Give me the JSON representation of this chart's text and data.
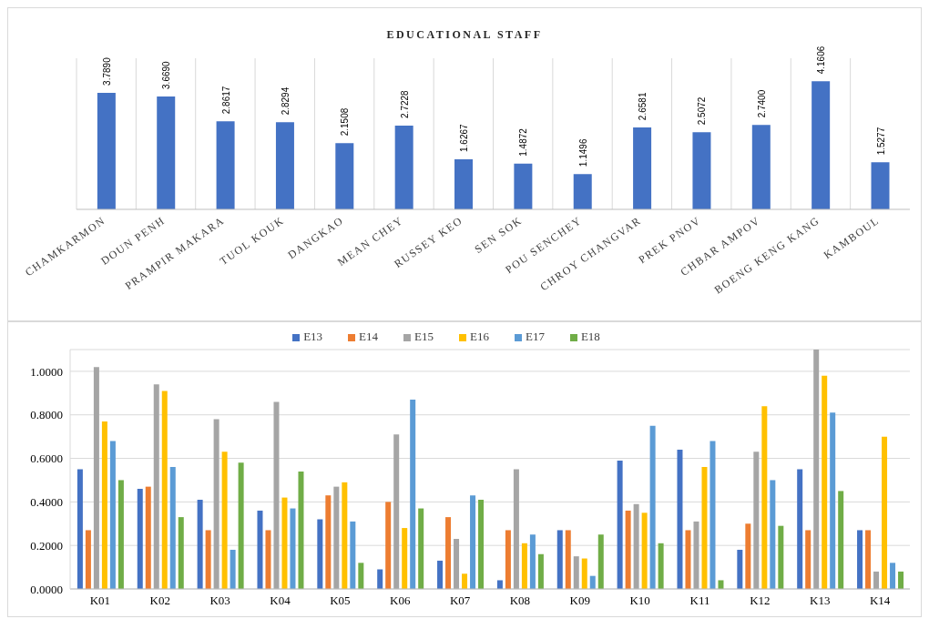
{
  "chart_data": [
    {
      "type": "bar",
      "title": "EDUCATIONAL STAFF",
      "categories": [
        "CHAMKARMON",
        "DOUN PENH",
        "PRAMPIR MAKARA",
        "TUOL KOUK",
        "DANGKAO",
        "MEAN CHEY",
        "RUSSEY KEO",
        "SEN SOK",
        "POU SENCHEY",
        "CHROY CHANGVAR",
        "PREK PNOV",
        "CHBAR AMPOV",
        "BOENG KENG KANG",
        "KAMBOUL"
      ],
      "values": [
        3.789,
        3.669,
        2.8617,
        2.8294,
        2.1508,
        2.7228,
        1.6267,
        1.4872,
        1.1496,
        2.6581,
        2.5072,
        2.74,
        4.1606,
        1.5277
      ],
      "value_labels": [
        "3.7890",
        "3.6690",
        "2.8617",
        "2.8294",
        "2.1508",
        "2.7228",
        "1.6267",
        "1.4872",
        "1.1496",
        "2.6581",
        "2.5072",
        "2.7400",
        "4.1606",
        "1.5277"
      ],
      "color": "#4472c4",
      "grid": "x"
    },
    {
      "type": "bar",
      "categories": [
        "K01",
        "K02",
        "K03",
        "K04",
        "K05",
        "K06",
        "K07",
        "K08",
        "K09",
        "K10",
        "K11",
        "K12",
        "K13",
        "K14"
      ],
      "series": [
        {
          "name": "E13",
          "color": "#4472c4",
          "values": [
            0.55,
            0.46,
            0.41,
            0.36,
            0.32,
            0.09,
            0.13,
            0.04,
            0.27,
            0.59,
            0.64,
            0.18,
            0.55,
            0.27
          ]
        },
        {
          "name": "E14",
          "color": "#ed7d31",
          "values": [
            0.27,
            0.47,
            0.27,
            0.27,
            0.43,
            0.4,
            0.33,
            0.27,
            0.27,
            0.36,
            0.27,
            0.3,
            0.27,
            0.27
          ]
        },
        {
          "name": "E15",
          "color": "#a5a5a5",
          "values": [
            1.02,
            0.94,
            0.78,
            0.86,
            0.47,
            0.71,
            0.23,
            0.55,
            0.15,
            0.39,
            0.31,
            0.63,
            1.1,
            0.08
          ]
        },
        {
          "name": "E16",
          "color": "#ffc000",
          "values": [
            0.77,
            0.91,
            0.63,
            0.42,
            0.49,
            0.28,
            0.07,
            0.21,
            0.14,
            0.35,
            0.56,
            0.84,
            0.98,
            0.7
          ]
        },
        {
          "name": "E17",
          "color": "#5b9bd5",
          "values": [
            0.68,
            0.56,
            0.18,
            0.37,
            0.31,
            0.87,
            0.43,
            0.25,
            0.06,
            0.75,
            0.68,
            0.5,
            0.81,
            0.12
          ]
        },
        {
          "name": "E18",
          "color": "#70ad47",
          "values": [
            0.5,
            0.33,
            0.58,
            0.54,
            0.12,
            0.37,
            0.41,
            0.16,
            0.25,
            0.21,
            0.04,
            0.29,
            0.45,
            0.08
          ]
        }
      ],
      "ylim": [
        0,
        1.1
      ],
      "yticks": [
        {
          "value": 0,
          "label": "0.0000"
        },
        {
          "value": 0.2,
          "label": "0.2000"
        },
        {
          "value": 0.4,
          "label": "0.4000"
        },
        {
          "value": 0.6,
          "label": "0.6000"
        },
        {
          "value": 0.8,
          "label": "0.8000"
        },
        {
          "value": 1,
          "label": "1.0000"
        }
      ],
      "grid": "y",
      "legend": "top"
    }
  ]
}
